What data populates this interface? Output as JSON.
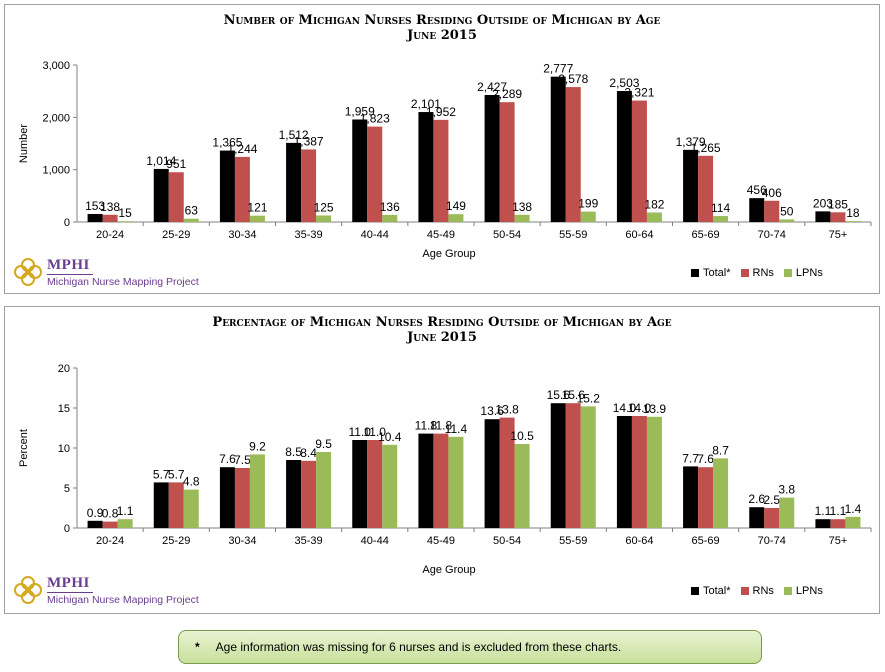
{
  "colors": {
    "total": "#000000",
    "rns": "#c0504d",
    "lpns": "#9bbb59"
  },
  "legend": {
    "total": "Total*",
    "rns": "RNs",
    "lpns": "LPNs"
  },
  "logo": {
    "org": "MPHI",
    "project": "Michigan Nurse Mapping Project"
  },
  "footnote": {
    "symbol": "*",
    "text": "Age information was missing for 6 nurses and is excluded from these charts."
  },
  "chart_data": [
    {
      "type": "bar",
      "title": "Number of Michigan Nurses Residing Outside of Michigan by Age",
      "subtitle": "June 2015",
      "xlabel": "Age Group",
      "ylabel": "Number",
      "ylim": [
        0,
        3000
      ],
      "yticks": [
        0,
        1000,
        2000,
        3000
      ],
      "ytick_labels": [
        "0",
        "1,000",
        "2,000",
        "3,000"
      ],
      "legend_position": "bottom-right",
      "categories": [
        "20-24",
        "25-29",
        "30-34",
        "35-39",
        "40-44",
        "45-49",
        "50-54",
        "55-59",
        "60-64",
        "65-69",
        "70-74",
        "75+"
      ],
      "series": [
        {
          "name": "Total*",
          "values": [
            153,
            1014,
            1365,
            1512,
            1959,
            2101,
            2427,
            2777,
            2503,
            1379,
            456,
            203
          ],
          "labels": [
            "153",
            "1,014",
            "1,365",
            "1,512",
            "1,959",
            "2,101",
            "2,427",
            "2,777",
            "2,503",
            "1,379",
            "456",
            "203"
          ]
        },
        {
          "name": "RNs",
          "values": [
            138,
            951,
            1244,
            1387,
            1823,
            1952,
            2289,
            2578,
            2321,
            1265,
            406,
            185
          ],
          "labels": [
            "138",
            "951",
            "1,244",
            "1,387",
            "1,823",
            "1,952",
            "2,289",
            "2,578",
            "2,321",
            "1,265",
            "406",
            "185"
          ]
        },
        {
          "name": "LPNs",
          "values": [
            15,
            63,
            121,
            125,
            136,
            149,
            138,
            199,
            182,
            114,
            50,
            18
          ],
          "labels": [
            "15",
            "63",
            "121",
            "125",
            "136",
            "149",
            "138",
            "199",
            "182",
            "114",
            "50",
            "18"
          ]
        }
      ]
    },
    {
      "type": "bar",
      "title": "Percentage of Michigan Nurses Residing Outside of Michigan by Age",
      "subtitle": "June 2015",
      "xlabel": "Age Group",
      "ylabel": "Percent",
      "ylim": [
        0,
        20
      ],
      "yticks": [
        0,
        5,
        10,
        15,
        20
      ],
      "ytick_labels": [
        "0",
        "5",
        "10",
        "15",
        "20"
      ],
      "legend_position": "bottom-right",
      "categories": [
        "20-24",
        "25-29",
        "30-34",
        "35-39",
        "40-44",
        "45-49",
        "50-54",
        "55-59",
        "60-64",
        "65-69",
        "70-74",
        "75+"
      ],
      "series": [
        {
          "name": "Total*",
          "values": [
            0.9,
            5.7,
            7.6,
            8.5,
            11.0,
            11.8,
            13.6,
            15.6,
            14.0,
            7.7,
            2.6,
            1.1
          ],
          "labels": [
            "0.9",
            "5.7",
            "7.6",
            "8.5",
            "11.0",
            "11.8",
            "13.6",
            "15.6",
            "14.0",
            "7.7",
            "2.6",
            "1.1"
          ]
        },
        {
          "name": "RNs",
          "values": [
            0.8,
            5.7,
            7.5,
            8.4,
            11.0,
            11.8,
            13.8,
            15.6,
            14.0,
            7.6,
            2.5,
            1.1
          ],
          "labels": [
            "0.8",
            "5.7",
            "7.5",
            "8.4",
            "11.0",
            "11.8",
            "13.8",
            "15.6",
            "14.0",
            "7.6",
            "2.5",
            "1.1"
          ]
        },
        {
          "name": "LPNs",
          "values": [
            1.1,
            4.8,
            9.2,
            9.5,
            10.4,
            11.4,
            10.5,
            15.2,
            13.9,
            8.7,
            3.8,
            1.4
          ],
          "labels": [
            "1.1",
            "4.8",
            "9.2",
            "9.5",
            "10.4",
            "11.4",
            "10.5",
            "15.2",
            "13.9",
            "8.7",
            "3.8",
            "1.4"
          ]
        }
      ]
    }
  ]
}
